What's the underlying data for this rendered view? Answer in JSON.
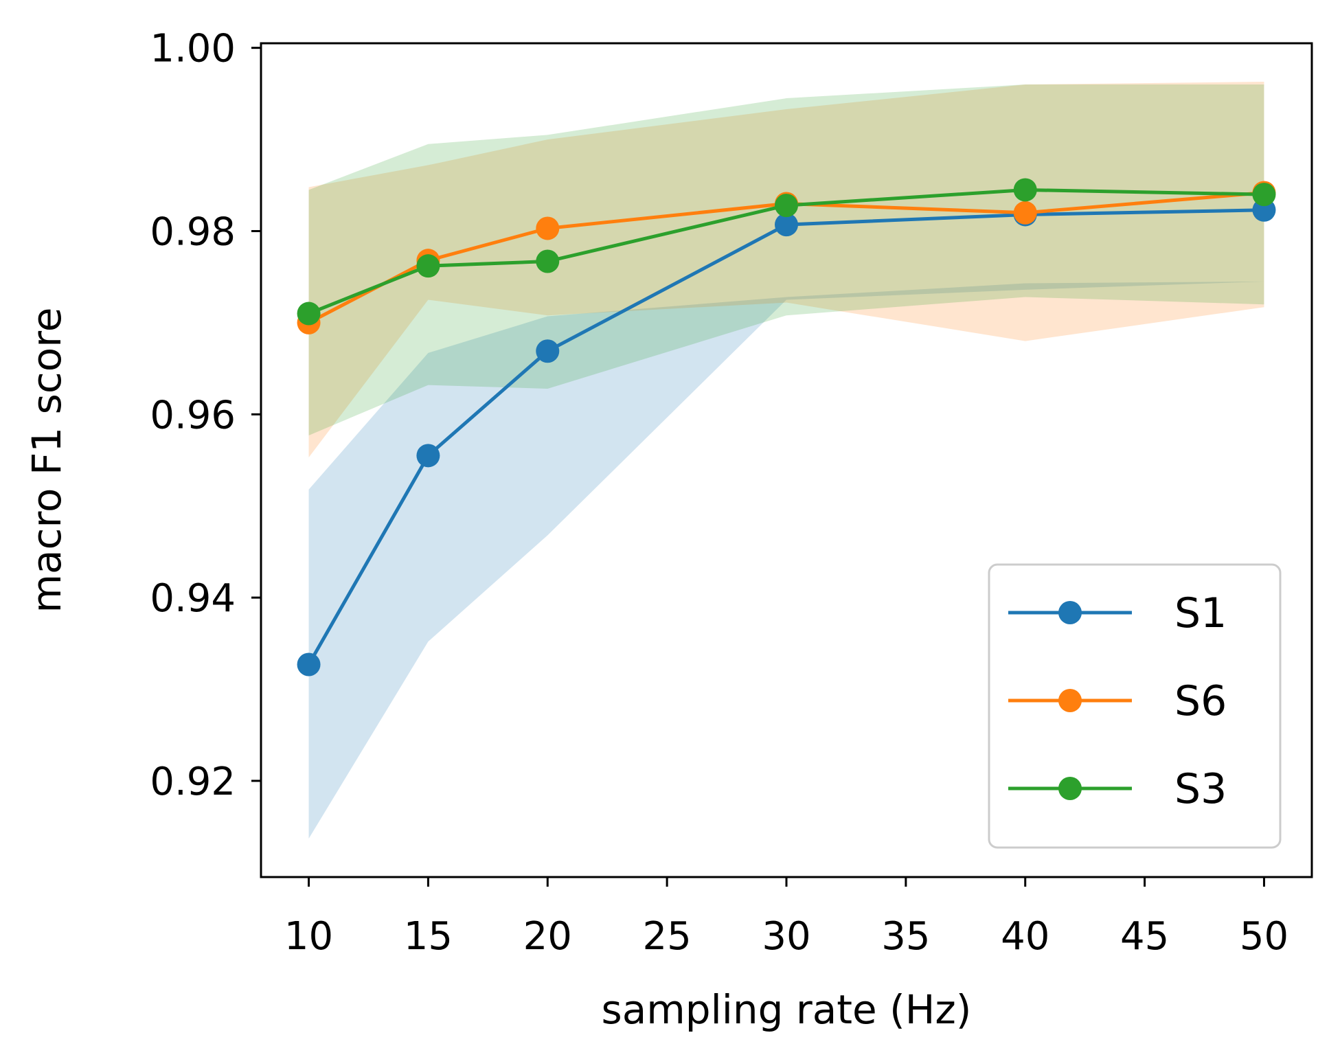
{
  "chart_data": {
    "type": "line",
    "title": "",
    "xlabel": "sampling rate (Hz)",
    "ylabel": "macro F1 score",
    "xlim": [
      8,
      52
    ],
    "ylim": [
      0.9095,
      1.0005
    ],
    "xticks": [
      10,
      15,
      20,
      25,
      30,
      35,
      40,
      45,
      50
    ],
    "xtick_labels": [
      "10",
      "15",
      "20",
      "25",
      "30",
      "35",
      "40",
      "45",
      "50"
    ],
    "yticks": [
      0.92,
      0.94,
      0.96,
      0.98,
      1.0
    ],
    "ytick_labels": [
      "0.92",
      "0.94",
      "0.96",
      "0.98",
      "1.00"
    ],
    "grid": false,
    "legend_position": "lower-right",
    "x": [
      10,
      15,
      20,
      30,
      40,
      50
    ],
    "series": [
      {
        "name": "S1",
        "color": "#1f77b4",
        "values": [
          0.9327,
          0.9555,
          0.9669,
          0.9807,
          0.9818,
          0.9823
        ],
        "lower": [
          0.9137,
          0.9352,
          0.9468,
          0.9725,
          0.9736,
          0.9745
        ],
        "upper": [
          0.9518,
          0.9667,
          0.9707,
          0.9728,
          0.9743,
          0.9745
        ]
      },
      {
        "name": "S6",
        "color": "#ff7f0e",
        "values": [
          0.97,
          0.9768,
          0.9803,
          0.983,
          0.982,
          0.9842
        ],
        "lower": [
          0.9553,
          0.9725,
          0.9708,
          0.9722,
          0.968,
          0.9717
        ],
        "upper": [
          0.9848,
          0.9872,
          0.99,
          0.9933,
          0.996,
          0.9963
        ]
      },
      {
        "name": "S3",
        "color": "#2ca02c",
        "values": [
          0.971,
          0.9762,
          0.9767,
          0.9828,
          0.9845,
          0.984
        ],
        "lower": [
          0.9577,
          0.9632,
          0.9628,
          0.9708,
          0.9728,
          0.972
        ],
        "upper": [
          0.9845,
          0.9895,
          0.9905,
          0.9945,
          0.996,
          0.996
        ]
      }
    ]
  }
}
